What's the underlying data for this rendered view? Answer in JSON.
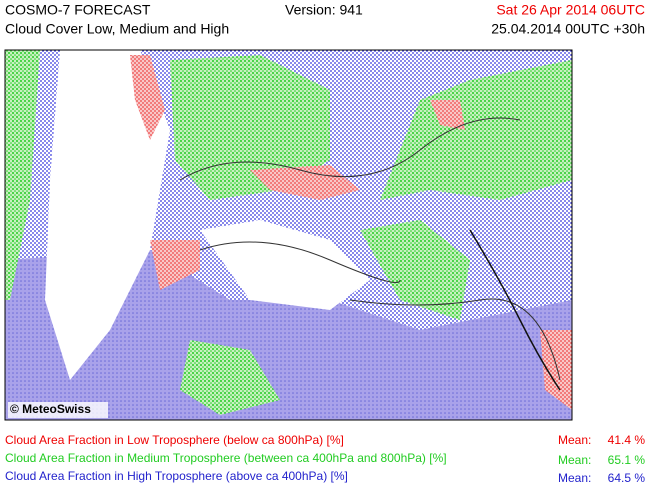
{
  "header": {
    "title": "COSMO-7 FORECAST",
    "subtitle": "Cloud Cover Low, Medium and High",
    "version": "Version: 941",
    "valid_time": "Sat 26 Apr 2014 06UTC",
    "run_time": "25.04.2014 00UTC +30h"
  },
  "map": {
    "credit": "© MeteoSwiss"
  },
  "legend": [
    {
      "label": "Cloud Area Fraction in Low Troposphere (below ca 800hPa) [%]",
      "mean_label": "Mean:",
      "mean": "41.4 %"
    },
    {
      "label": "Cloud Area Fraction in Medium Troposphere (between ca 400hPa and 800hPa) [%]",
      "mean_label": "Mean:",
      "mean": "65.1 %"
    },
    {
      "label": "Cloud Area Fraction in High Troposphere (above ca 400hPa) [%]",
      "mean_label": "Mean:",
      "mean": "64.5 %"
    }
  ]
}
